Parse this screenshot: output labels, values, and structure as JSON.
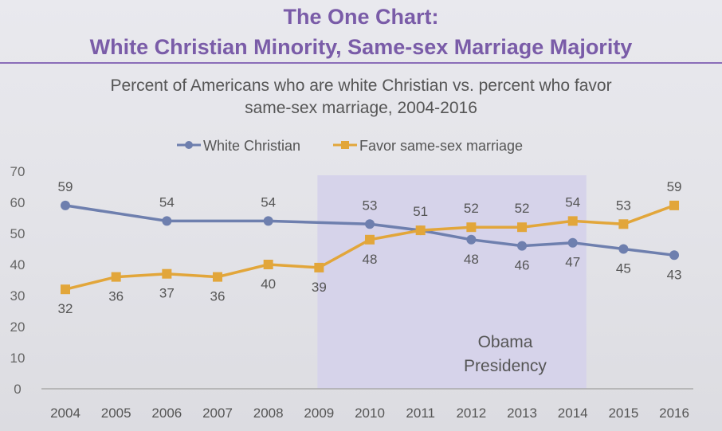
{
  "title_line1": "The One Chart:",
  "title_line2": "White Christian Minority, Same-sex Marriage Majority",
  "subtitle_line1": "Percent of Americans who are white Christian vs. percent who favor",
  "subtitle_line2": "same-sex marriage, 2004-2016",
  "chart_data": {
    "type": "line",
    "title": "White Christian Minority, Same-sex Marriage Majority",
    "legend": "top",
    "ylim": [
      0,
      70
    ],
    "yticks": [
      0,
      10,
      20,
      30,
      40,
      50,
      60,
      70
    ],
    "x": [
      2004,
      2005,
      2006,
      2007,
      2008,
      2009,
      2010,
      2011,
      2012,
      2013,
      2014,
      2015,
      2016
    ],
    "annotation": {
      "text_line1": "Obama",
      "text_line2": "Presidency",
      "range": [
        2009,
        2014.3
      ]
    },
    "series": [
      {
        "name": "White Christian",
        "color": "#6e7fae",
        "marker": "circle",
        "points": [
          [
            2004,
            59
          ],
          [
            2006,
            54
          ],
          [
            2008,
            54
          ],
          [
            2010,
            53
          ],
          [
            2011,
            51
          ],
          [
            2012,
            48
          ],
          [
            2013,
            46
          ],
          [
            2014,
            47
          ],
          [
            2015,
            45
          ],
          [
            2016,
            43
          ]
        ]
      },
      {
        "name": "Favor same-sex marriage",
        "color": "#e2a63a",
        "marker": "square",
        "points": [
          [
            2004,
            32
          ],
          [
            2005,
            36
          ],
          [
            2006,
            37
          ],
          [
            2007,
            36
          ],
          [
            2008,
            40
          ],
          [
            2009,
            39
          ],
          [
            2010,
            48
          ],
          [
            2011,
            51
          ],
          [
            2012,
            52
          ],
          [
            2013,
            52
          ],
          [
            2014,
            54
          ],
          [
            2015,
            53
          ],
          [
            2016,
            59
          ]
        ]
      }
    ]
  }
}
